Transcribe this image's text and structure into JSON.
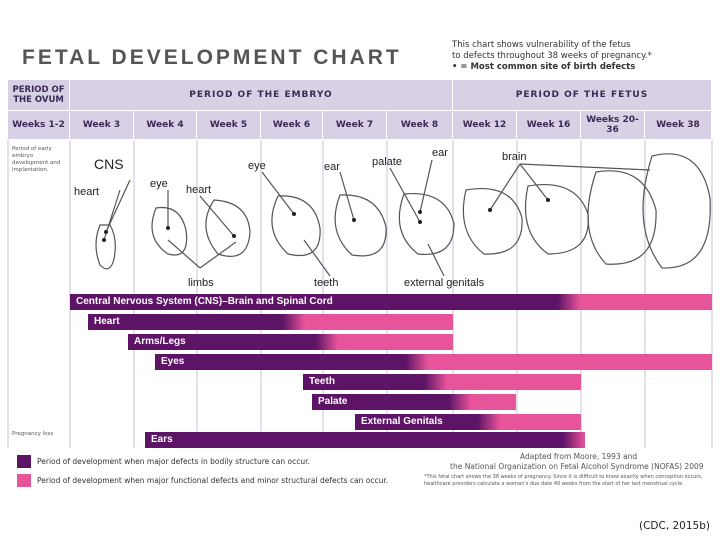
{
  "title": "FETAL DEVELOPMENT CHART",
  "note": {
    "line1": "This chart shows vulnerability of the fetus",
    "line2": "to defects throughout 38 weeks of pregnancy.*",
    "line3": "• = Most common site of birth defects"
  },
  "headers": {
    "period_ovum": "PERIOD OF THE OVUM",
    "period_embryo": "PERIOD OF THE EMBRYO",
    "period_fetus": "PERIOD OF THE FETUS",
    "weeks": [
      "Weeks 1-2",
      "Week 3",
      "Week 4",
      "Week 5",
      "Week 6",
      "Week 7",
      "Week 8",
      "Week 12",
      "Week 16",
      "Weeks 20-36",
      "Week 38"
    ]
  },
  "side_labels": {
    "early": "Period of early embryo development and implantation.",
    "loss": "Pregnancy loss"
  },
  "anatomy_labels": [
    "CNS",
    "heart",
    "eye",
    "heart",
    "eye",
    "ear",
    "palate",
    "ear",
    "brain",
    "limbs",
    "teeth",
    "external genitals"
  ],
  "bars": [
    {
      "label": "Central Nervous System (CNS)–Brain and Spinal Cord"
    },
    {
      "label": "Heart"
    },
    {
      "label": "Arms/Legs"
    },
    {
      "label": "Eyes"
    },
    {
      "label": "Teeth"
    },
    {
      "label": "Palate"
    },
    {
      "label": "External Genitals"
    },
    {
      "label": "Ears"
    }
  ],
  "legend": {
    "major": "Period of development when major defects in bodily structure can occur.",
    "functional": "Period of development when major functional defects and minor structural defects can occur."
  },
  "credit": {
    "line1": "Adapted from Moore, 1993 and",
    "line2": "the National Organization on Fetal Alcohol Syndrome (NOFAS) 2009",
    "footnote": "*This fetal chart shows the 38 weeks of pregnancy. Since it is difficult to know exactly when conception occurs, healthcare providers calculate a woman's due date 40 weeks from the start of her last menstrual cycle."
  },
  "citation": "(CDC, 2015b)",
  "colors": {
    "major": "#5e1466",
    "functional": "#e8549a",
    "header": "#d8d0e4"
  }
}
